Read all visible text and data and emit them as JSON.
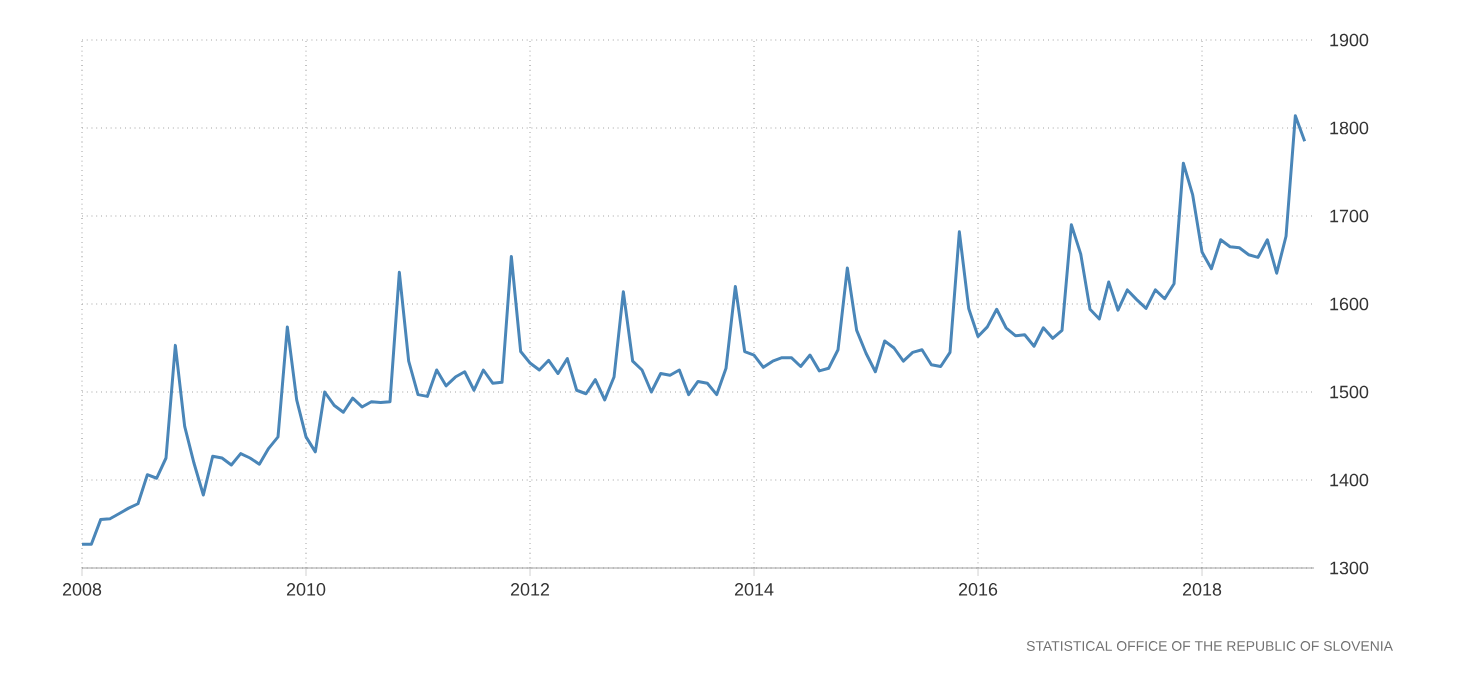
{
  "chart_data": {
    "type": "line",
    "color": "#4a86b8",
    "grid": true,
    "marker": "none",
    "line_style": "solid",
    "xlim": [
      "2008-01",
      "2019-01"
    ],
    "xticks": [
      "2008",
      "2010",
      "2012",
      "2014",
      "2016",
      "2018"
    ],
    "ylim": [
      1300,
      1900
    ],
    "yticks": [
      1300,
      1400,
      1500,
      1600,
      1700,
      1800,
      1900
    ],
    "annotations": [
      "STATISTICAL OFFICE OF THE REPUBLIC OF SLOVENIA"
    ],
    "x": [
      "2008-01",
      "2008-02",
      "2008-03",
      "2008-04",
      "2008-05",
      "2008-06",
      "2008-07",
      "2008-08",
      "2008-09",
      "2008-10",
      "2008-11",
      "2008-12",
      "2009-01",
      "2009-02",
      "2009-03",
      "2009-04",
      "2009-05",
      "2009-06",
      "2009-07",
      "2009-08",
      "2009-09",
      "2009-10",
      "2009-11",
      "2009-12",
      "2010-01",
      "2010-02",
      "2010-03",
      "2010-04",
      "2010-05",
      "2010-06",
      "2010-07",
      "2010-08",
      "2010-09",
      "2010-10",
      "2010-11",
      "2010-12",
      "2011-01",
      "2011-02",
      "2011-03",
      "2011-04",
      "2011-05",
      "2011-06",
      "2011-07",
      "2011-08",
      "2011-09",
      "2011-10",
      "2011-11",
      "2011-12",
      "2012-01",
      "2012-02",
      "2012-03",
      "2012-04",
      "2012-05",
      "2012-06",
      "2012-07",
      "2012-08",
      "2012-09",
      "2012-10",
      "2012-11",
      "2012-12",
      "2013-01",
      "2013-02",
      "2013-03",
      "2013-04",
      "2013-05",
      "2013-06",
      "2013-07",
      "2013-08",
      "2013-09",
      "2013-10",
      "2013-11",
      "2013-12",
      "2014-01",
      "2014-02",
      "2014-03",
      "2014-04",
      "2014-05",
      "2014-06",
      "2014-07",
      "2014-08",
      "2014-09",
      "2014-10",
      "2014-11",
      "2014-12",
      "2015-01",
      "2015-02",
      "2015-03",
      "2015-04",
      "2015-05",
      "2015-06",
      "2015-07",
      "2015-08",
      "2015-09",
      "2015-10",
      "2015-11",
      "2015-12",
      "2016-01",
      "2016-02",
      "2016-03",
      "2016-04",
      "2016-05",
      "2016-06",
      "2016-07",
      "2016-08",
      "2016-09",
      "2016-10",
      "2016-11",
      "2016-12",
      "2017-01",
      "2017-02",
      "2017-03",
      "2017-04",
      "2017-05",
      "2017-06",
      "2017-07",
      "2017-08",
      "2017-09",
      "2017-10",
      "2017-11",
      "2017-12",
      "2018-01",
      "2018-02",
      "2018-03",
      "2018-04",
      "2018-05",
      "2018-06",
      "2018-07",
      "2018-08",
      "2018-09",
      "2018-10",
      "2018-11",
      "2018-12"
    ],
    "values": [
      1327,
      1327,
      1355,
      1356,
      1362,
      1368,
      1373,
      1406,
      1402,
      1425,
      1553,
      1461,
      1419,
      1383,
      1427,
      1425,
      1417,
      1430,
      1425,
      1418,
      1436,
      1449,
      1574,
      1491,
      1449,
      1432,
      1500,
      1485,
      1477,
      1493,
      1483,
      1489,
      1488,
      1489,
      1636,
      1535,
      1497,
      1495,
      1525,
      1507,
      1517,
      1523,
      1502,
      1525,
      1510,
      1511,
      1654,
      1546,
      1533,
      1525,
      1536,
      1521,
      1538,
      1502,
      1498,
      1514,
      1491,
      1517,
      1614,
      1535,
      1525,
      1500,
      1521,
      1519,
      1525,
      1497,
      1512,
      1510,
      1497,
      1527,
      1620,
      1546,
      1542,
      1528,
      1535,
      1539,
      1539,
      1529,
      1542,
      1524,
      1527,
      1548,
      1641,
      1570,
      1544,
      1523,
      1558,
      1550,
      1535,
      1545,
      1548,
      1531,
      1529,
      1545,
      1682,
      1595,
      1563,
      1574,
      1594,
      1573,
      1564,
      1565,
      1552,
      1573,
      1561,
      1570,
      1690,
      1657,
      1594,
      1583,
      1625,
      1593,
      1616,
      1605,
      1595,
      1616,
      1606,
      1623,
      1760,
      1724,
      1659,
      1640,
      1673,
      1665,
      1664,
      1656,
      1653,
      1673,
      1635,
      1677,
      1814,
      1785
    ]
  }
}
